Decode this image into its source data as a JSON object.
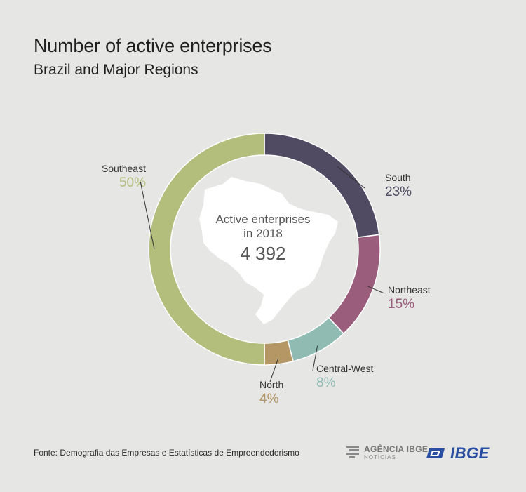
{
  "header": {
    "title": "Number of active enterprises",
    "subtitle": "Brazil and Major Regions"
  },
  "chart_data": {
    "type": "pie",
    "title": "Number of active enterprises",
    "subtitle": "Brazil and Major Regions",
    "center_label_line1": "Active enterprises",
    "center_label_line2": "in 2018",
    "center_value": "4 392",
    "slices": [
      {
        "name": "South",
        "value": 23,
        "label": "23%",
        "color": "#504a62"
      },
      {
        "name": "Northeast",
        "value": 15,
        "label": "15%",
        "color": "#9a5d7b"
      },
      {
        "name": "Central-West",
        "value": 8,
        "label": "8%",
        "color": "#8fbbb3"
      },
      {
        "name": "North",
        "value": 4,
        "label": "4%",
        "color": "#b59665"
      },
      {
        "name": "Southeast",
        "value": 50,
        "label": "50%",
        "color": "#b3be7c"
      }
    ]
  },
  "footer": {
    "source": "Fonte: Demografia das Empresas e Estatísticas de Empreendedorismo",
    "logo_agencia_line1": "AGÊNCIA IBGE",
    "logo_agencia_line2": "NOTÍCIAS",
    "logo_ibge": "IBGE"
  }
}
